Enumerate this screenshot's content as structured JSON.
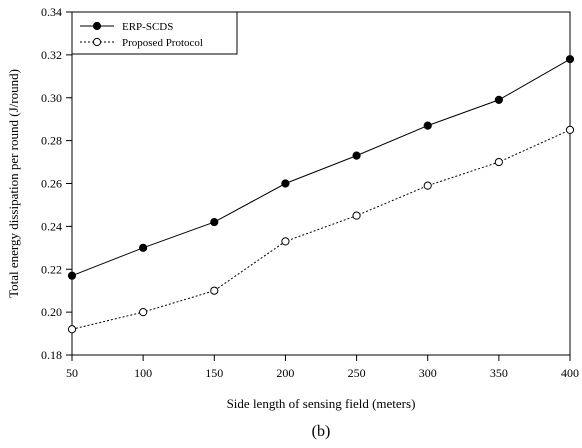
{
  "chart_data": {
    "type": "line",
    "title": "",
    "xlabel": "Side length of sensing field (meters)",
    "ylabel": "Total energy dissipation per round (J/round)",
    "caption": "(b)",
    "x": [
      50,
      100,
      150,
      200,
      250,
      300,
      350,
      400
    ],
    "xticks": [
      "50",
      "100",
      "150",
      "200",
      "250",
      "300",
      "350",
      "400"
    ],
    "yticks": [
      "0.18",
      "0.20",
      "0.22",
      "0.24",
      "0.26",
      "0.28",
      "0.30",
      "0.32",
      "0.34"
    ],
    "xlim": [
      50,
      400
    ],
    "ylim": [
      0.18,
      0.34
    ],
    "grid": false,
    "legend_position": "top-left",
    "series": [
      {
        "name": "ERP-SCDS",
        "values": [
          0.217,
          0.23,
          0.242,
          0.26,
          0.273,
          0.287,
          0.299,
          0.318
        ],
        "line_style": "solid",
        "marker": "filled-circle",
        "color": "#000000"
      },
      {
        "name": "Proposed Protocol",
        "values": [
          0.192,
          0.2,
          0.21,
          0.233,
          0.245,
          0.259,
          0.27,
          0.285
        ],
        "line_style": "dotted",
        "marker": "open-circle",
        "color": "#000000"
      }
    ]
  }
}
